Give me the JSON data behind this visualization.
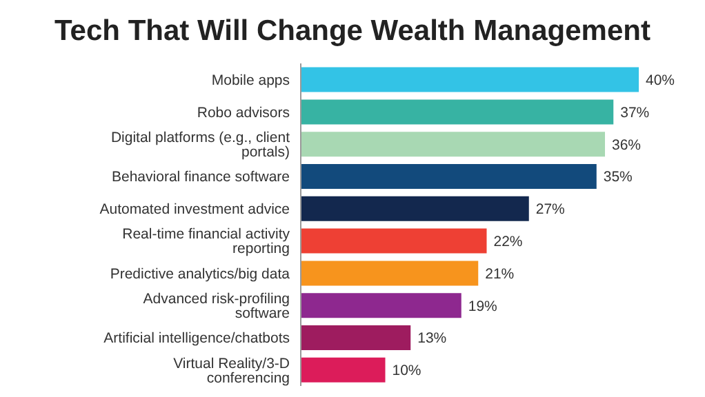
{
  "chart_data": {
    "type": "bar",
    "orientation": "horizontal",
    "title": "Tech That Will Change Wealth Management",
    "categories": [
      "Mobile apps",
      "Robo advisors",
      "Digital platforms (e.g., client portals)",
      "Behavioral finance software",
      "Automated investment advice",
      "Real-time financial activity reporting",
      "Predictive analytics/big data",
      "Advanced risk-profiling software",
      "Artificial intelligence/chatbots",
      "Virtual Reality/3-D  conferencing"
    ],
    "values": [
      40,
      37,
      36,
      35,
      27,
      22,
      21,
      19,
      13,
      10
    ],
    "colors": [
      "#33c3e6",
      "#37b3a3",
      "#a8d8b3",
      "#124a7c",
      "#13284e",
      "#ee4034",
      "#f7941d",
      "#8e288f",
      "#9e1c5f",
      "#dc1c5a"
    ],
    "value_labels": [
      "40%",
      "37%",
      "36%",
      "35%",
      "27%",
      "22%",
      "21%",
      "19%",
      "13%",
      "10%"
    ],
    "grid": false,
    "legend": false
  }
}
